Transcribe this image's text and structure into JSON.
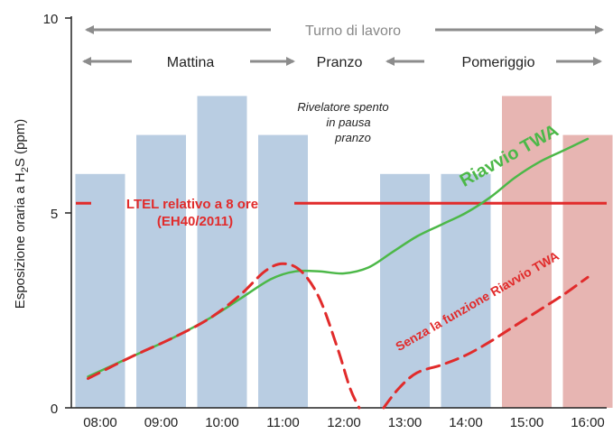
{
  "chart_data": {
    "type": "bar",
    "categories": [
      "08:00",
      "09:00",
      "10:00",
      "11:00",
      "12:00",
      "13:00",
      "14:00",
      "15:00",
      "16:00"
    ],
    "ylabel_main": "Esposizione oraria a H",
    "ylabel_sub": "2",
    "ylabel_tail": "S (ppm)",
    "ylim": [
      0,
      10
    ],
    "yticks": [
      "0",
      "5",
      "10"
    ],
    "bars": [
      {
        "x": "08:00",
        "value": 6,
        "color": "#b9cde2"
      },
      {
        "x": "09:00",
        "value": 7,
        "color": "#b9cde2"
      },
      {
        "x": "10:00",
        "value": 8,
        "color": "#b9cde2"
      },
      {
        "x": "11:00",
        "value": 7,
        "color": "#b9cde2"
      },
      {
        "x": "13:00",
        "value": 6,
        "color": "#b9cde2"
      },
      {
        "x": "14:00",
        "value": 6,
        "color": "#b9cde2"
      },
      {
        "x": "15:00",
        "value": 8,
        "color": "#e7b5b2"
      },
      {
        "x": "16:00",
        "value": 7,
        "color": "#e7b5b2"
      }
    ],
    "ltel": {
      "value": 5.25,
      "label_line1": "LTEL relativo a 8 ore",
      "label_line2": "(EH40/2011)",
      "color": "#e12b2b"
    },
    "series": [
      {
        "name": "Riavvio TWA",
        "color": "#4cb848",
        "style": "solid",
        "points": [
          [
            7.8,
            0.8
          ],
          [
            8.5,
            1.3
          ],
          [
            9.2,
            1.8
          ],
          [
            9.8,
            2.3
          ],
          [
            10.3,
            2.8
          ],
          [
            10.8,
            3.3
          ],
          [
            11.2,
            3.5
          ],
          [
            11.6,
            3.5
          ],
          [
            12.0,
            3.45
          ],
          [
            12.4,
            3.6
          ],
          [
            12.8,
            4.0
          ],
          [
            13.2,
            4.4
          ],
          [
            13.6,
            4.7
          ],
          [
            14.0,
            5.0
          ],
          [
            14.4,
            5.4
          ],
          [
            14.8,
            5.9
          ],
          [
            15.2,
            6.3
          ],
          [
            15.6,
            6.6
          ],
          [
            16.0,
            6.9
          ]
        ]
      },
      {
        "name": "Senza la funzione Riavvio TWA",
        "color": "#e12b2b",
        "style": "dashed",
        "points": [
          [
            7.8,
            0.75
          ],
          [
            8.5,
            1.3
          ],
          [
            9.2,
            1.8
          ],
          [
            9.8,
            2.3
          ],
          [
            10.3,
            2.9
          ],
          [
            10.7,
            3.5
          ],
          [
            11.0,
            3.7
          ],
          [
            11.3,
            3.5
          ],
          [
            11.6,
            2.8
          ],
          [
            11.9,
            1.5
          ],
          [
            12.1,
            0.5
          ],
          [
            12.25,
            0.0
          ]
        ]
      },
      {
        "name": "Senza la funzione Riavvio TWA",
        "color": "#e12b2b",
        "style": "dashed",
        "points": [
          [
            12.65,
            0.0
          ],
          [
            12.9,
            0.5
          ],
          [
            13.2,
            0.9
          ],
          [
            13.6,
            1.1
          ],
          [
            14.0,
            1.35
          ],
          [
            14.4,
            1.7
          ],
          [
            14.8,
            2.1
          ],
          [
            15.2,
            2.5
          ],
          [
            15.6,
            2.9
          ],
          [
            16.0,
            3.35
          ]
        ]
      }
    ],
    "series_labels": {
      "green": "Riavvio TWA",
      "red": "Senza la funzione Riavvio TWA"
    },
    "annotations": {
      "shift": "Turno di lavoro",
      "morning": "Mattina",
      "lunch": "Pranzo",
      "afternoon": "Pomeriggio",
      "note_line1": "Rivelatore spento",
      "note_line2": "in pausa",
      "note_line3": "pranzo"
    },
    "arrow_color": "#8c8c8c"
  }
}
